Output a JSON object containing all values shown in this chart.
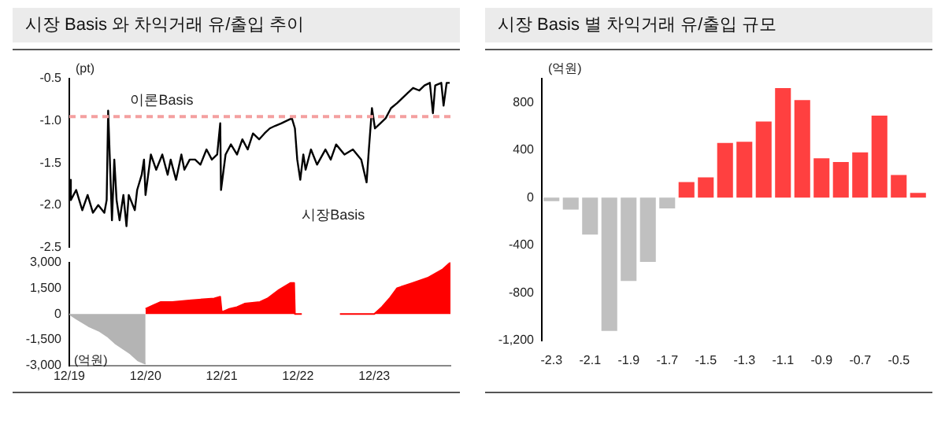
{
  "chart_data": [
    {
      "type": "line",
      "title": "시장 Basis 와 차익거래 유/출입 추이",
      "ylabel": "(pt)",
      "xlim": [
        "--12-19",
        "--12-24"
      ],
      "ylim": [
        -2.5,
        -0.5
      ],
      "yticks": [
        -0.5,
        {
          "value": -1,
          "label": "-1.0"
        },
        {
          "value": -1.5,
          "label": "-1.5"
        },
        {
          "value": -2,
          "label": "-2.0"
        },
        {
          "value": -2.5,
          "label": "-2.5"
        }
      ],
      "tick_labels": "y",
      "ref_lines": [
        {
          "axis": "y",
          "value": -0.95,
          "label": "이론Basis",
          "color": "#f4a0a0",
          "line_style": "dashed"
        }
      ],
      "series": [
        {
          "name": "시장Basis",
          "color": "#000000",
          "x": [
            "--12-19T00:00",
            "--12-19T00:29",
            "--12-19T02:10",
            "--12-19T04:05",
            "--12-19T05:46",
            "--12-19T07:26",
            "--12-19T09:07",
            "--12-19T11:02",
            "--12-19T11:46",
            "--12-19T12:14",
            "--12-19T12:43",
            "--12-19T13:26",
            "--12-19T14:10",
            "--12-19T14:53",
            "--12-19T15:50",
            "--12-19T17:02",
            "--12-19T18:00",
            "--12-19T18:43",
            "--12-19T20:38",
            "--12-19T21:22",
            "--12-19T22:48",
            "--12-19T23:31",
            "--12-20T00:00",
            "--12-20T01:41",
            "--12-20T03:22",
            "--12-20T05:17",
            "--12-20T06:58",
            "--12-20T07:55",
            "--12-20T09:36",
            "--12-20T11:17",
            "--12-20T12:14",
            "--12-20T13:55",
            "--12-20T15:36",
            "--12-20T17:17",
            "--12-20T19:12",
            "--12-20T20:53",
            "--12-20T22:34",
            "--12-20T23:31",
            "--12-20T23:46",
            "--12-21T01:12",
            "--12-21T02:53",
            "--12-21T04:48",
            "--12-21T06:29",
            "--12-21T08:10",
            "--12-21T09:50",
            "--12-21T11:46",
            "--12-21T13:26",
            "--12-21T15:07",
            "--12-21T16:48",
            "--12-21T18:43",
            "--12-21T20:24",
            "--12-21T22:05",
            "--12-21T23:02",
            "--12-21T23:46",
            "--12-22T00:43",
            "--12-22T01:41",
            "--12-22T02:24",
            "--12-22T04:05",
            "--12-22T06:00",
            "--12-22T08:38",
            "--12-22T10:19",
            "--12-22T12:00",
            "--12-22T14:38",
            "--12-22T17:17",
            "--12-22T19:55",
            "--12-22T21:36",
            "--12-22T22:19",
            "--12-22T23:17",
            "--12-23T00:14",
            "--12-23T01:55",
            "--12-23T03:36",
            "--12-23T05:17",
            "--12-23T07:12",
            "--12-23T08:53",
            "--12-23T10:34",
            "--12-23T12:14",
            "--12-23T14:10",
            "--12-23T15:50",
            "--12-23T17:31",
            "--12-23T18:29",
            "--12-23T19:12",
            "--12-23T21:07",
            "--12-23T21:50",
            "--12-23T22:48",
            "--12-23T23:46"
          ],
          "values": [
            -1.7,
            -1.94,
            -1.82,
            -2.06,
            -1.88,
            -2.09,
            -2,
            -2.09,
            -1.94,
            -0.88,
            -1.4,
            -2.18,
            -1.46,
            -1.94,
            -2.18,
            -1.88,
            -2.25,
            -1.88,
            -2.06,
            -1.82,
            -1.64,
            -1.46,
            -1.88,
            -1.4,
            -1.58,
            -1.4,
            -1.64,
            -1.46,
            -1.7,
            -1.4,
            -1.58,
            -1.46,
            -1.46,
            -1.52,
            -1.34,
            -1.46,
            -1.4,
            -1.03,
            -1.82,
            -1.4,
            -1.28,
            -1.4,
            -1.22,
            -1.34,
            -1.15,
            -1.22,
            -1.15,
            -1.09,
            -1.06,
            -1.03,
            -1,
            -0.97,
            -1.09,
            -1.46,
            -1.7,
            -1.4,
            -1.58,
            -1.34,
            -1.52,
            -1.34,
            -1.46,
            -1.28,
            -1.4,
            -1.34,
            -1.46,
            -1.73,
            -1.34,
            -0.85,
            -1.09,
            -1.03,
            -0.97,
            -0.85,
            -0.79,
            -0.73,
            -0.67,
            -0.61,
            -0.64,
            -0.58,
            -0.55,
            -0.91,
            -0.58,
            -0.55,
            -0.82,
            -0.55,
            -0.55
          ]
        }
      ]
    },
    {
      "type": "area",
      "ylabel": "(억원)",
      "xlim": [
        "--12-19",
        "--12-24"
      ],
      "xticks": [
        {
          "value": "--12-19",
          "label": "12/19"
        },
        {
          "value": "--12-20",
          "label": "12/20"
        },
        {
          "value": "--12-21",
          "label": "12/21"
        },
        {
          "value": "--12-22",
          "label": "12/22"
        },
        {
          "value": "--12-23",
          "label": "12/23"
        }
      ],
      "ylim": [
        -3000,
        3000
      ],
      "yticks": [
        {
          "value": 3000,
          "label": "3,000"
        },
        {
          "value": 1500,
          "label": "1,500"
        },
        0,
        {
          "value": -1500,
          "label": "-1,500"
        },
        {
          "value": -3000,
          "label": "-3,000"
        }
      ],
      "series": [
        {
          "color": "#b4b4b4",
          "x": [
            "--12-19T00:00",
            "--12-19T02:24",
            "--12-19T06:00",
            "--12-19T09:36",
            "--12-19T12:00",
            "--12-19T14:24",
            "--12-19T16:48",
            "--12-19T19:12",
            "--12-19T21:36",
            "--12-20T00:00"
          ],
          "values": [
            0,
            -300,
            -700,
            -1000,
            -1300,
            -1700,
            -2000,
            -2300,
            -2700,
            -2900
          ]
        },
        {
          "color": "#ff0000",
          "x": [
            "--12-20T00:00",
            "--12-20T02:24",
            "--12-20T04:48",
            "--12-20T08:24",
            "--12-20T14:24",
            "--12-20T21:36",
            "--12-20T23:31",
            "--12-21T00:00",
            "--12-21T02:24",
            "--12-21T04:48",
            "--12-21T07:12",
            "--12-21T12:00",
            "--12-21T14:24",
            "--12-21T18:00",
            "--12-21T21:36",
            "--12-21T22:48",
            "--12-21T23:02",
            "--12-22T01:12"
          ],
          "values": [
            300,
            500,
            700,
            700,
            800,
            900,
            1000,
            100,
            300,
            400,
            600,
            700,
            900,
            1400,
            1800,
            1800,
            0,
            0
          ]
        },
        {
          "color": "#ff0000",
          "x": [
            "--12-22T13:12",
            "--12-23T00:00",
            "--12-23T02:24",
            "--12-23T04:48",
            "--12-23T07:12",
            "--12-23T12:00",
            "--12-23T16:48",
            "--12-23T21:36",
            "--12-24T00:00"
          ],
          "values": [
            0,
            0,
            400,
            900,
            1500,
            1800,
            2100,
            2600,
            3000
          ]
        }
      ]
    },
    {
      "type": "bar",
      "title": "시장 Basis 별 차익거래 유/출입 규모",
      "ylabel": "(억원)",
      "categories": [
        "-2.3",
        null,
        "-2.1",
        null,
        "-1.9",
        null,
        "-1.7",
        null,
        "-1.5",
        null,
        "-1.3",
        null,
        "-1.1",
        null,
        "-0.9",
        null,
        "-0.7",
        null,
        "-0.5",
        null
      ],
      "values": [
        -30,
        -100,
        -310,
        -1120,
        -700,
        -540,
        -90,
        130,
        170,
        460,
        470,
        640,
        920,
        820,
        330,
        300,
        380,
        690,
        190,
        40
      ],
      "colors": [
        "#c0c0c0",
        "#c0c0c0",
        "#c0c0c0",
        "#c0c0c0",
        "#c0c0c0",
        "#c0c0c0",
        "#c0c0c0",
        "#ff4040",
        "#ff4040",
        "#ff4040",
        "#ff4040",
        "#ff4040",
        "#ff4040",
        "#ff4040",
        "#ff4040",
        "#ff4040",
        "#ff4040",
        "#ff4040",
        "#ff4040",
        "#ff4040"
      ],
      "ylim": [
        -1200,
        1000
      ],
      "yticks": [
        800,
        400,
        0,
        -400,
        -800,
        {
          "value": -1200,
          "label": "-1,200"
        }
      ]
    }
  ]
}
